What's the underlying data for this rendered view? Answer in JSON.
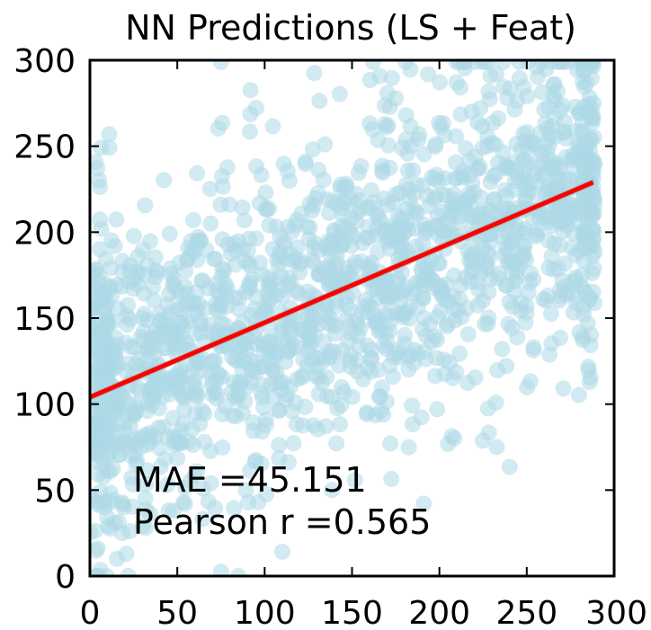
{
  "chart_data": {
    "type": "scatter",
    "title": "NN Predictions (LS + Feat)",
    "xlabel": "",
    "ylabel": "",
    "xlim": [
      0,
      300
    ],
    "ylim": [
      0,
      300
    ],
    "x_ticks": [
      0,
      50,
      100,
      150,
      200,
      250,
      300
    ],
    "y_ticks": [
      0,
      50,
      100,
      150,
      200,
      250,
      300
    ],
    "grid": false,
    "point_color": "#add8e6",
    "fit_color": "#ff0000",
    "x_max_points": 289,
    "fit_line": {
      "x": [
        0,
        288
      ],
      "y": [
        104,
        229
      ]
    },
    "annotations": {
      "mae": "MAE =45.151",
      "pearson": "Pearson r =0.565"
    },
    "cloud": {
      "points_x_range": [
        0,
        289
      ],
      "trend_intercept": 104,
      "trend_slope": 0.434,
      "approx_point_count": 1800
    }
  }
}
